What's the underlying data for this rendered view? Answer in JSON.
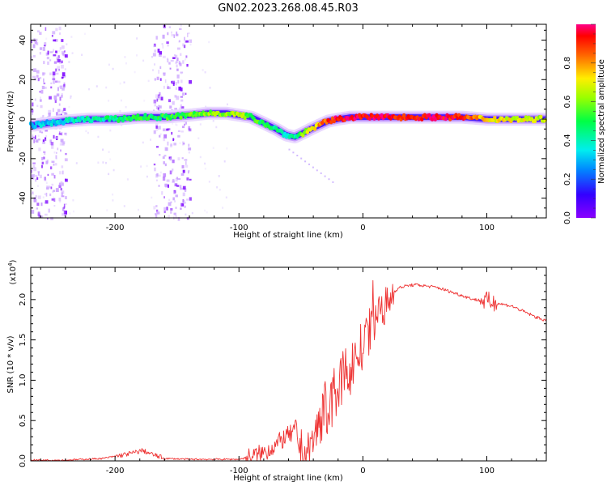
{
  "chart_data": [
    {
      "type": "heatmap",
      "title": "GN02.2023.268.08.45.R03",
      "xlabel": "Height of straight line (km)",
      "ylabel": "Frequency (Hz)",
      "xlim": [
        -268,
        148
      ],
      "ylim": [
        -50,
        48
      ],
      "xticks": [
        -200,
        -100,
        0,
        100
      ],
      "yticks": [
        -40,
        -20,
        0,
        20,
        40
      ],
      "xtick_labels": [
        "-200",
        "-100",
        "0",
        "100"
      ],
      "ytick_labels": [
        "-40",
        "-20",
        "0",
        "20",
        "40"
      ],
      "colorbar": {
        "label": "Normalized spectral amplitude",
        "range": [
          0,
          1
        ],
        "ticks": [
          0.0,
          0.2,
          0.4,
          0.6,
          0.8
        ],
        "tick_labels": [
          "0.0",
          "0.2",
          "0.4",
          "0.6",
          "0.8"
        ]
      },
      "ridge": {
        "x": [
          -265,
          -240,
          -220,
          -200,
          -180,
          -160,
          -140,
          -125,
          -110,
          -100,
          -90,
          -80,
          -70,
          -62,
          -55,
          -48,
          -42,
          -35,
          -28,
          -20,
          -10,
          0,
          20,
          40,
          60,
          80,
          100,
          120,
          148
        ],
        "freq": [
          -3,
          -1,
          0,
          0,
          1,
          1,
          2,
          3,
          3,
          2,
          1,
          -2,
          -5,
          -8,
          -9,
          -7,
          -5,
          -3,
          -1,
          0,
          1,
          1,
          1,
          1,
          1,
          1,
          0,
          0,
          0
        ],
        "amplitude": [
          0.3,
          0.35,
          0.4,
          0.45,
          0.5,
          0.5,
          0.55,
          0.6,
          0.6,
          0.62,
          0.55,
          0.5,
          0.45,
          0.4,
          0.4,
          0.6,
          0.7,
          0.8,
          0.9,
          0.95,
          0.95,
          0.95,
          0.95,
          0.92,
          0.95,
          0.9,
          0.7,
          0.7,
          0.65
        ]
      },
      "noise_bands": [
        [
          -268,
          -240
        ],
        [
          -170,
          -140
        ]
      ]
    },
    {
      "type": "line",
      "xlabel": "Height of straight line (km)",
      "ylabel": "SNR (10 * v/v)",
      "exponent_label": "(x10",
      "exponent": "4",
      "xlim": [
        -268,
        148
      ],
      "ylim": [
        0,
        2.4
      ],
      "xticks": [
        -200,
        -100,
        0,
        100
      ],
      "yticks": [
        0,
        0.5,
        1.0,
        1.5,
        2.0
      ],
      "xtick_labels": [
        "-200",
        "-100",
        "0",
        "100"
      ],
      "ytick_labels": [
        "0.0",
        "0.5",
        "1.0",
        "1.5",
        "2.0"
      ],
      "color": "#ee3333",
      "series": [
        {
          "name": "SNR",
          "x": [
            -268,
            -240,
            -210,
            -195,
            -185,
            -178,
            -170,
            -160,
            -140,
            -120,
            -100,
            -90,
            -80,
            -70,
            -62,
            -55,
            -50,
            -45,
            -40,
            -35,
            -30,
            -25,
            -20,
            -15,
            -10,
            -5,
            0,
            5,
            10,
            15,
            20,
            25,
            30,
            35,
            40,
            45,
            50,
            60,
            70,
            80,
            90,
            100,
            110,
            120,
            130,
            140,
            148
          ],
          "y": [
            0.01,
            0.01,
            0.03,
            0.07,
            0.1,
            0.13,
            0.08,
            0.03,
            0.02,
            0.02,
            0.02,
            0.05,
            0.1,
            0.2,
            0.3,
            0.35,
            0.15,
            0.08,
            0.25,
            0.5,
            0.65,
            0.75,
            0.9,
            1.05,
            1.15,
            1.3,
            1.4,
            1.55,
            1.75,
            1.85,
            1.95,
            2.1,
            2.15,
            2.17,
            2.18,
            2.18,
            2.17,
            2.15,
            2.1,
            2.05,
            2.0,
            1.98,
            1.95,
            1.92,
            1.85,
            1.78,
            1.74
          ]
        }
      ]
    }
  ]
}
